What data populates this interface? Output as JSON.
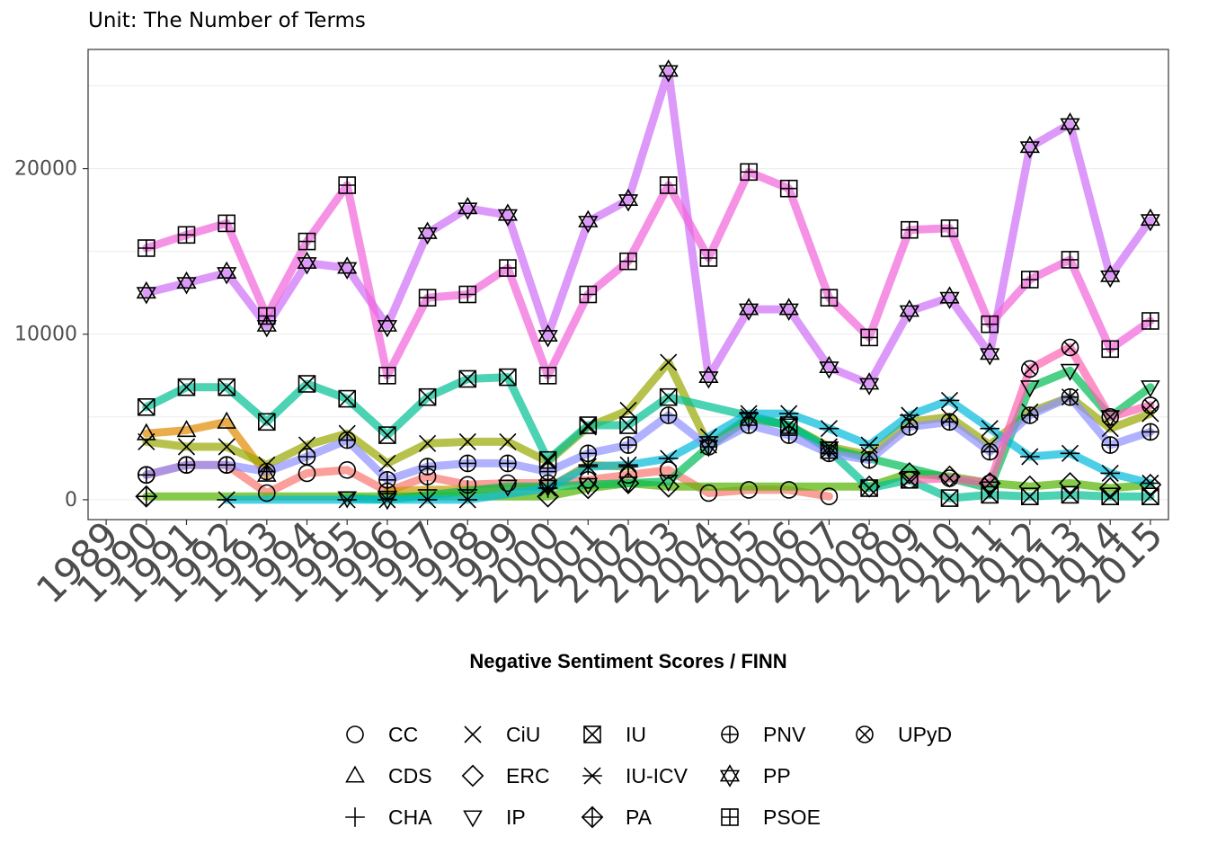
{
  "chart_data": {
    "type": "line",
    "subtitle": "Unit: The Number of Terms",
    "xlabel": "Negative Sentiment Scores / FINN",
    "ylabel": "",
    "xlim": [
      1988.55,
      2015.45
    ],
    "ylim": [
      -1200,
      27200
    ],
    "y_ticks": [
      0,
      10000,
      20000
    ],
    "y_gridlines": [
      5000,
      15000,
      25000
    ],
    "x_ticks": [
      1989,
      1990,
      1991,
      1992,
      1993,
      1994,
      1995,
      1996,
      1997,
      1998,
      1999,
      2000,
      2001,
      2002,
      2003,
      2004,
      2005,
      2006,
      2007,
      2008,
      2009,
      2010,
      2011,
      2012,
      2013,
      2014,
      2015
    ],
    "legend_position": "bottom",
    "series": [
      {
        "name": "CC",
        "symbol": "circle",
        "color": "#f8766d",
        "points": [
          [
            1990,
            1500
          ],
          [
            1991,
            2100
          ],
          [
            1992,
            2100
          ],
          [
            1993,
            400
          ],
          [
            1994,
            1600
          ],
          [
            1995,
            1800
          ],
          [
            1996,
            500
          ],
          [
            1997,
            1400
          ],
          [
            1998,
            900
          ],
          [
            1999,
            1000
          ],
          [
            2000,
            1000
          ],
          [
            2001,
            1200
          ],
          [
            2002,
            1500
          ],
          [
            2003,
            1800
          ],
          [
            2004,
            400
          ],
          [
            2005,
            600
          ],
          [
            2006,
            600
          ],
          [
            2007,
            200
          ]
        ]
      },
      {
        "name": "CDS",
        "symbol": "triangle-up",
        "color": "#e38900",
        "points": [
          [
            1990,
            4000
          ],
          [
            1991,
            4200
          ],
          [
            1992,
            4700
          ],
          [
            1993,
            1500
          ]
        ]
      },
      {
        "name": "CHA",
        "symbol": "plus",
        "color": "#c49a00",
        "points": [
          [
            1996,
            500
          ],
          [
            1997,
            600
          ],
          [
            1998,
            600
          ],
          [
            2000,
            700
          ],
          [
            2001,
            2100
          ],
          [
            2002,
            2000
          ]
        ]
      },
      {
        "name": "CiU",
        "symbol": "cross",
        "color": "#99a800",
        "points": [
          [
            1990,
            3500
          ],
          [
            1991,
            3200
          ],
          [
            1992,
            3200
          ],
          [
            1993,
            2100
          ],
          [
            1994,
            3300
          ],
          [
            1995,
            4000
          ],
          [
            1996,
            2200
          ],
          [
            1997,
            3400
          ],
          [
            1998,
            3500
          ],
          [
            1999,
            3500
          ],
          [
            2000,
            2300
          ],
          [
            2001,
            4400
          ],
          [
            2002,
            5400
          ],
          [
            2003,
            8300
          ],
          [
            2004,
            3300
          ],
          [
            2005,
            5000
          ],
          [
            2006,
            4500
          ],
          [
            2007,
            3200
          ],
          [
            2008,
            2700
          ],
          [
            2009,
            4700
          ],
          [
            2010,
            5000
          ],
          [
            2011,
            3300
          ],
          [
            2012,
            5300
          ],
          [
            2013,
            6200
          ],
          [
            2014,
            4300
          ],
          [
            2015,
            5200
          ]
        ]
      },
      {
        "name": "ERC",
        "symbol": "diamond",
        "color": "#53b400",
        "points": [
          [
            1990,
            200
          ],
          [
            2000,
            200
          ],
          [
            2001,
            700
          ],
          [
            2002,
            1000
          ],
          [
            2003,
            800
          ],
          [
            2008,
            800
          ],
          [
            2009,
            1600
          ],
          [
            2010,
            1400
          ],
          [
            2011,
            1000
          ],
          [
            2012,
            800
          ],
          [
            2013,
            1000
          ],
          [
            2014,
            700
          ],
          [
            2015,
            900
          ]
        ]
      },
      {
        "name": "IP",
        "symbol": "triangle-down",
        "color": "#00bc56",
        "points": [
          [
            1995,
            100
          ],
          [
            1996,
            0
          ],
          [
            1999,
            800
          ],
          [
            2000,
            800
          ],
          [
            2001,
            900
          ],
          [
            2002,
            1000
          ],
          [
            2003,
            1100
          ],
          [
            2004,
            3200
          ],
          [
            2005,
            4900
          ],
          [
            2006,
            4500
          ],
          [
            2007,
            3100
          ],
          [
            2011,
            700
          ],
          [
            2012,
            6800
          ],
          [
            2013,
            7800
          ],
          [
            2014,
            5000
          ],
          [
            2015,
            6800
          ]
        ]
      },
      {
        "name": "IU",
        "symbol": "square-x",
        "color": "#00c094",
        "points": [
          [
            1990,
            5600
          ],
          [
            1991,
            6800
          ],
          [
            1992,
            6800
          ],
          [
            1993,
            4700
          ],
          [
            1994,
            7000
          ],
          [
            1995,
            6100
          ],
          [
            1996,
            3900
          ],
          [
            1997,
            6200
          ],
          [
            1998,
            7300
          ],
          [
            1999,
            7400
          ],
          [
            2000,
            2400
          ],
          [
            2001,
            4500
          ],
          [
            2002,
            4500
          ],
          [
            2003,
            6200
          ],
          [
            2006,
            4500
          ],
          [
            2007,
            3000
          ],
          [
            2008,
            700
          ],
          [
            2009,
            1200
          ],
          [
            2010,
            100
          ],
          [
            2011,
            300
          ],
          [
            2012,
            200
          ],
          [
            2013,
            300
          ],
          [
            2014,
            200
          ],
          [
            2015,
            200
          ]
        ]
      },
      {
        "name": "IU-ICV",
        "symbol": "asterisk",
        "color": "#00bbdc",
        "points": [
          [
            1992,
            0
          ],
          [
            1995,
            0
          ],
          [
            1996,
            0
          ],
          [
            1997,
            0
          ],
          [
            1998,
            0
          ],
          [
            2000,
            700
          ],
          [
            2001,
            2000
          ],
          [
            2002,
            2100
          ],
          [
            2003,
            2500
          ],
          [
            2004,
            3800
          ],
          [
            2005,
            5200
          ],
          [
            2006,
            5200
          ],
          [
            2007,
            4300
          ],
          [
            2008,
            3300
          ],
          [
            2009,
            5100
          ],
          [
            2010,
            6000
          ],
          [
            2011,
            4300
          ],
          [
            2012,
            2600
          ],
          [
            2013,
            2800
          ],
          [
            2014,
            1600
          ],
          [
            2015,
            1000
          ]
        ]
      },
      {
        "name": "PA",
        "symbol": "diamond-plus",
        "color": "#00a6ff",
        "points": [
          [
            1990,
            200
          ]
        ]
      },
      {
        "name": "PNV",
        "symbol": "circle-plus",
        "color": "#8f91ff",
        "points": [
          [
            1990,
            1500
          ],
          [
            1991,
            2100
          ],
          [
            1992,
            2100
          ],
          [
            1993,
            1700
          ],
          [
            1994,
            2600
          ],
          [
            1995,
            3600
          ],
          [
            1996,
            1200
          ],
          [
            1997,
            2000
          ],
          [
            1998,
            2200
          ],
          [
            1999,
            2200
          ],
          [
            2000,
            1700
          ],
          [
            2001,
            2800
          ],
          [
            2002,
            3300
          ],
          [
            2003,
            5100
          ],
          [
            2004,
            3200
          ],
          [
            2005,
            4500
          ],
          [
            2006,
            3900
          ],
          [
            2007,
            2800
          ],
          [
            2008,
            2400
          ],
          [
            2009,
            4400
          ],
          [
            2010,
            4700
          ],
          [
            2011,
            2900
          ],
          [
            2012,
            5100
          ],
          [
            2013,
            6200
          ],
          [
            2014,
            3300
          ],
          [
            2015,
            4100
          ]
        ]
      },
      {
        "name": "PP",
        "symbol": "hexagram",
        "color": "#cf6ef7",
        "points": [
          [
            1990,
            12500
          ],
          [
            1991,
            13100
          ],
          [
            1992,
            13700
          ],
          [
            1993,
            10500
          ],
          [
            1994,
            14300
          ],
          [
            1995,
            14000
          ],
          [
            1996,
            10500
          ],
          [
            1997,
            16100
          ],
          [
            1998,
            17600
          ],
          [
            1999,
            17200
          ],
          [
            2000,
            9900
          ],
          [
            2001,
            16800
          ],
          [
            2002,
            18100
          ],
          [
            2003,
            25900
          ],
          [
            2004,
            7400
          ],
          [
            2005,
            11500
          ],
          [
            2006,
            11500
          ],
          [
            2007,
            8000
          ],
          [
            2008,
            7000
          ],
          [
            2009,
            11400
          ],
          [
            2010,
            12200
          ],
          [
            2011,
            8800
          ],
          [
            2012,
            21300
          ],
          [
            2013,
            22700
          ],
          [
            2014,
            13500
          ],
          [
            2015,
            16900
          ]
        ]
      },
      {
        "name": "PSOE",
        "symbol": "square-plus",
        "color": "#f264dc",
        "points": [
          [
            1990,
            15200
          ],
          [
            1991,
            16000
          ],
          [
            1992,
            16700
          ],
          [
            1993,
            11100
          ],
          [
            1994,
            15600
          ],
          [
            1995,
            19000
          ],
          [
            1996,
            7500
          ],
          [
            1997,
            12200
          ],
          [
            1998,
            12400
          ],
          [
            1999,
            14000
          ],
          [
            2000,
            7500
          ],
          [
            2001,
            12400
          ],
          [
            2002,
            14400
          ],
          [
            2003,
            19000
          ],
          [
            2004,
            14600
          ],
          [
            2005,
            19800
          ],
          [
            2006,
            18800
          ],
          [
            2007,
            12200
          ],
          [
            2008,
            9800
          ],
          [
            2009,
            16300
          ],
          [
            2010,
            16400
          ],
          [
            2011,
            10600
          ],
          [
            2012,
            13300
          ],
          [
            2013,
            14500
          ],
          [
            2014,
            9100
          ],
          [
            2015,
            10800
          ]
        ]
      },
      {
        "name": "UPyD",
        "symbol": "circle-x",
        "color": "#ff64b0",
        "points": [
          [
            2009,
            1200
          ],
          [
            2010,
            1300
          ],
          [
            2011,
            1000
          ],
          [
            2012,
            7900
          ],
          [
            2013,
            9200
          ],
          [
            2014,
            5000
          ],
          [
            2015,
            5700
          ]
        ]
      }
    ]
  }
}
